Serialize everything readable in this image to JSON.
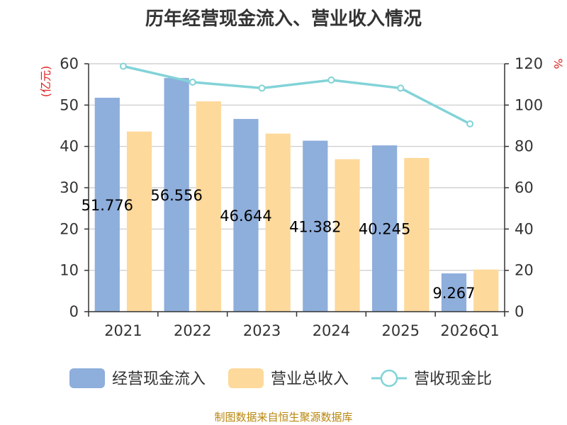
{
  "chart_data": {
    "title": "历年经营现金流入、营业收入情况",
    "type": "bar",
    "categories": [
      "2021",
      "2022",
      "2023",
      "2024",
      "2025",
      "2026Q1"
    ],
    "series": [
      {
        "name": "经营现金流入",
        "type": "bar",
        "axis": "left",
        "color": "#8eaedc",
        "values": [
          51.776,
          56.556,
          46.644,
          41.382,
          40.245,
          9.267
        ],
        "labels": [
          "51.776",
          "56.556",
          "46.644",
          "41.382",
          "40.245",
          "9.267"
        ]
      },
      {
        "name": "营业总收入",
        "type": "bar",
        "axis": "left",
        "color": "#fdd99b",
        "values": [
          43.6,
          50.9,
          43.1,
          36.9,
          37.2,
          10.2
        ]
      },
      {
        "name": "营收现金比",
        "type": "line",
        "axis": "right",
        "color": "#82d3d8",
        "values": [
          118.8,
          111.1,
          108.2,
          112.1,
          108.2,
          90.9
        ]
      }
    ],
    "left_axis": {
      "unit": "(亿元)",
      "ylim": [
        0,
        60
      ],
      "ticks": [
        "0",
        "10",
        "20",
        "30",
        "40",
        "50",
        "60"
      ]
    },
    "right_axis": {
      "unit": "%",
      "ylim": [
        0,
        120
      ],
      "ticks": [
        "0",
        "20",
        "40",
        "60",
        "80",
        "100",
        "120"
      ]
    },
    "grid": true,
    "legend_position": "bottom",
    "unit_color": "#e02020"
  },
  "source_note": "制图数据来自恒生聚源数据库"
}
